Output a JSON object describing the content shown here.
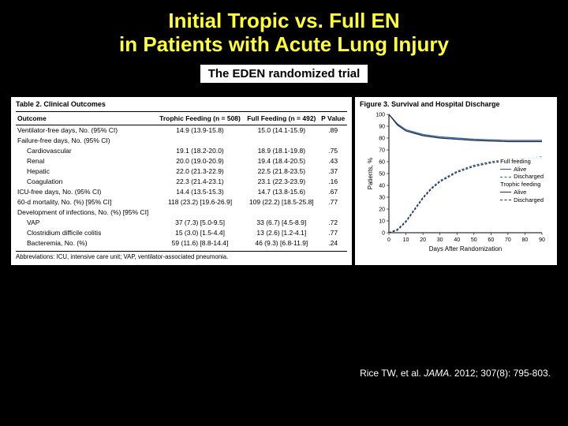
{
  "title": {
    "line1": "Initial Tropic vs. Full EN",
    "line2": "in Patients with Acute Lung Injury"
  },
  "subtitle": "The EDEN randomized trial",
  "citation": {
    "author": "Rice TW, et al. ",
    "journal": "JAMA",
    "rest": ". 2012; 307(8): 795-803."
  },
  "table": {
    "caption": "Table 2. Clinical Outcomes",
    "columns": [
      "Outcome",
      "Trophic Feeding\n(n = 508)",
      "Full Feeding\n(n = 492)",
      "P\nValue"
    ],
    "rows": [
      {
        "indent": false,
        "cells": [
          "Ventilator-free days, No. (95% CI)",
          "14.9 (13.9-15.8)",
          "15.0 (14.1-15.9)",
          ".89"
        ]
      },
      {
        "indent": false,
        "cells": [
          "Failure-free days, No. (95% CI)",
          "",
          "",
          ""
        ]
      },
      {
        "indent": true,
        "cells": [
          "Cardiovascular",
          "19.1 (18.2-20.0)",
          "18.9 (18.1-19.8)",
          ".75"
        ]
      },
      {
        "indent": true,
        "cells": [
          "Renal",
          "20.0 (19.0-20.9)",
          "19.4 (18.4-20.5)",
          ".43"
        ]
      },
      {
        "indent": true,
        "cells": [
          "Hepatic",
          "22.0 (21.3-22.9)",
          "22.5 (21.8-23.5)",
          ".37"
        ]
      },
      {
        "indent": true,
        "cells": [
          "Coagulation",
          "22.3 (21.4-23.1)",
          "23.1 (22.3-23.9)",
          ".16"
        ]
      },
      {
        "indent": false,
        "cells": [
          "ICU-free days, No. (95% CI)",
          "14.4 (13.5-15.3)",
          "14.7 (13.8-15.6)",
          ".67"
        ]
      },
      {
        "indent": false,
        "cells": [
          "60-d mortality, No. (%) [95% CI]",
          "118 (23.2) [19.6-26.9]",
          "109 (22.2) [18.5-25.8]",
          ".77"
        ]
      },
      {
        "indent": false,
        "cells": [
          "Development of infections, No. (%) [95% CI]",
          "",
          "",
          ""
        ]
      },
      {
        "indent": true,
        "cells": [
          "VAP",
          "37 (7.3) [5.0-9.5]",
          "33 (6.7) [4.5-8.9]",
          ".72"
        ]
      },
      {
        "indent": true,
        "cells": [
          "Clostridium difficile colitis",
          "15 (3.0) [1.5-4.4]",
          "13 (2.6) [1.2-4.1]",
          ".77"
        ]
      },
      {
        "indent": true,
        "cells": [
          "Bacteremia, No. (%)",
          "59 (11.6) [8.8-14.4]",
          "46 (9.3) [6.8-11.9]",
          ".24"
        ]
      }
    ],
    "abbrev": "Abbreviations: ICU, intensive care unit; VAP, ventilator-associated pneumonia."
  },
  "chart": {
    "caption": "Figure 3. Survival and Hospital Discharge",
    "ylabel": "Patients, %",
    "xlabel": "Days After Randomization",
    "xlim": [
      0,
      90
    ],
    "xtick_step": 10,
    "ylim": [
      0,
      100
    ],
    "ytick_step": 10,
    "background_color": "#ffffff",
    "axis_color": "#000000",
    "grid_color": "#cccccc",
    "series": [
      {
        "name": "Full feeding — Alive",
        "color": "#1a5fb4",
        "dash": false,
        "points": [
          [
            0,
            100
          ],
          [
            5,
            92
          ],
          [
            10,
            87
          ],
          [
            15,
            85
          ],
          [
            20,
            83
          ],
          [
            25,
            82
          ],
          [
            30,
            81
          ],
          [
            40,
            80
          ],
          [
            50,
            79
          ],
          [
            60,
            78.5
          ],
          [
            70,
            78
          ],
          [
            80,
            78
          ],
          [
            90,
            78
          ]
        ]
      },
      {
        "name": "Full feeding — Discharged",
        "color": "#1a5fb4",
        "dash": true,
        "points": [
          [
            0,
            0
          ],
          [
            5,
            3
          ],
          [
            10,
            10
          ],
          [
            15,
            20
          ],
          [
            20,
            30
          ],
          [
            25,
            38
          ],
          [
            30,
            44
          ],
          [
            40,
            52
          ],
          [
            50,
            57
          ],
          [
            60,
            60
          ],
          [
            70,
            62
          ],
          [
            80,
            63
          ],
          [
            90,
            64
          ]
        ]
      },
      {
        "name": "Trophic feeding — Alive",
        "color": "#2b2b2b",
        "dash": false,
        "points": [
          [
            0,
            100
          ],
          [
            5,
            91
          ],
          [
            10,
            86
          ],
          [
            15,
            84
          ],
          [
            20,
            82
          ],
          [
            25,
            81
          ],
          [
            30,
            80
          ],
          [
            40,
            79
          ],
          [
            50,
            78
          ],
          [
            60,
            77.5
          ],
          [
            70,
            77
          ],
          [
            80,
            77
          ],
          [
            90,
            77
          ]
        ]
      },
      {
        "name": "Trophic feeding — Discharged",
        "color": "#2b2b2b",
        "dash": true,
        "points": [
          [
            0,
            0
          ],
          [
            5,
            2
          ],
          [
            10,
            9
          ],
          [
            15,
            19
          ],
          [
            20,
            29
          ],
          [
            25,
            37
          ],
          [
            30,
            43
          ],
          [
            40,
            51
          ],
          [
            50,
            56
          ],
          [
            60,
            59
          ],
          [
            70,
            61
          ],
          [
            80,
            62
          ],
          [
            90,
            63
          ]
        ]
      }
    ],
    "legend": {
      "groups": [
        {
          "title": "Full feeding",
          "items": [
            {
              "label": "Alive",
              "color": "#1a5fb4",
              "dash": false
            },
            {
              "label": "Discharged",
              "color": "#1a5fb4",
              "dash": true
            }
          ]
        },
        {
          "title": "Trophic feeding",
          "items": [
            {
              "label": "Alive",
              "color": "#2b2b2b",
              "dash": false
            },
            {
              "label": "Discharged",
              "color": "#2b2b2b",
              "dash": true
            }
          ]
        }
      ]
    }
  }
}
